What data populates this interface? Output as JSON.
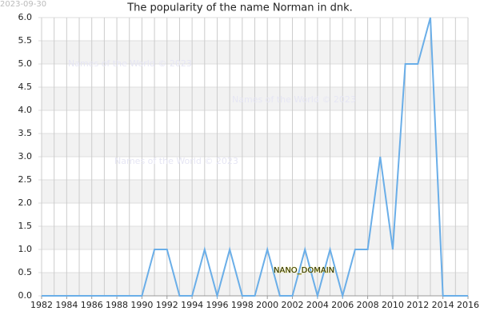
{
  "chart_data": {
    "type": "line",
    "title": "The popularity of the name Norman in dnk.",
    "date_stamp": "2023-09-30",
    "watermarks": [
      "Names of the World © 2023",
      "Names of the World © 2023",
      "Names of the World © 2023"
    ],
    "annotation": "NANO_DOMAIN",
    "x": [
      1982,
      1983,
      1984,
      1985,
      1986,
      1987,
      1988,
      1989,
      1990,
      1991,
      1992,
      1993,
      1994,
      1995,
      1996,
      1997,
      1998,
      1999,
      2000,
      2001,
      2002,
      2003,
      2004,
      2005,
      2006,
      2007,
      2008,
      2009,
      2010,
      2011,
      2012,
      2013,
      2014,
      2015,
      2016
    ],
    "series": [
      {
        "color": "#6aaee8",
        "values": [
          0,
          0,
          0,
          0,
          0,
          0,
          0,
          0,
          0,
          1,
          1,
          0,
          0,
          1,
          0,
          1,
          0,
          0,
          1,
          0,
          0,
          1,
          0,
          1,
          0,
          1,
          1,
          3,
          1,
          5,
          5,
          6,
          0,
          0,
          0
        ]
      }
    ],
    "xlim": [
      1982,
      2016
    ],
    "xticks": [
      1982,
      1984,
      1986,
      1988,
      1990,
      1992,
      1994,
      1996,
      1998,
      2000,
      2002,
      2004,
      2006,
      2008,
      2010,
      2012,
      2014,
      2016
    ],
    "ylim": [
      0,
      6
    ],
    "yticks": [
      {
        "value": 0,
        "label": "0.0"
      },
      {
        "value": 0.5,
        "label": "0.5"
      },
      {
        "value": 1,
        "label": "1.0"
      },
      {
        "value": 1.5,
        "label": "1.5"
      },
      {
        "value": 2,
        "label": "2.0"
      },
      {
        "value": 2.5,
        "label": "2.5"
      },
      {
        "value": 3,
        "label": "3.0"
      },
      {
        "value": 3.5,
        "label": "3.5"
      },
      {
        "value": 4,
        "label": "4.0"
      },
      {
        "value": 4.5,
        "label": "4.5"
      },
      {
        "value": 5,
        "label": "5.0"
      },
      {
        "value": 5.5,
        "label": "5.5"
      },
      {
        "value": 6,
        "label": "6.0"
      }
    ],
    "grid": true
  }
}
